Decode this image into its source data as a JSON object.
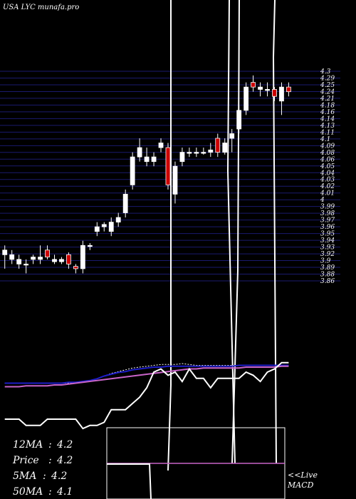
{
  "chart_data": {
    "type": "candlestick",
    "title": "USA LYC munafa.pro",
    "ylim": [
      3.85,
      4.3
    ],
    "y_tick_labels": [
      "4.3",
      "4.29",
      "4.25",
      "4.24",
      "4.21",
      "4.18",
      "4.16",
      "4.14",
      "4.13",
      "4.11",
      "4.1",
      "4.09",
      "4.08",
      "4.06",
      "4.05",
      "4.04",
      "4.03",
      "4.02",
      "4.01",
      "4",
      "3.99",
      "3.98",
      "3.97",
      "3.96",
      "3.95",
      "3.94",
      "3.93",
      "3.92",
      "3.9",
      "3.89",
      "3.88",
      "3.86"
    ],
    "candles": [
      {
        "o": 3.9,
        "h": 3.92,
        "l": 3.87,
        "c": 3.91,
        "dir": "up"
      },
      {
        "o": 3.89,
        "h": 3.91,
        "l": 3.88,
        "c": 3.9,
        "dir": "up"
      },
      {
        "o": 3.88,
        "h": 3.9,
        "l": 3.87,
        "c": 3.89,
        "dir": "up"
      },
      {
        "o": 3.88,
        "h": 3.89,
        "l": 3.86,
        "c": 3.88,
        "dir": "up"
      },
      {
        "o": 3.89,
        "h": 3.9,
        "l": 3.88,
        "c": 3.895,
        "dir": "up"
      },
      {
        "o": 3.89,
        "h": 3.92,
        "l": 3.88,
        "c": 3.895,
        "dir": "up"
      },
      {
        "o": 3.91,
        "h": 3.92,
        "l": 3.89,
        "c": 3.895,
        "dir": "down"
      },
      {
        "o": 3.885,
        "h": 3.9,
        "l": 3.88,
        "c": 3.89,
        "dir": "up"
      },
      {
        "o": 3.885,
        "h": 3.895,
        "l": 3.88,
        "c": 3.89,
        "dir": "up"
      },
      {
        "o": 3.9,
        "h": 3.905,
        "l": 3.87,
        "c": 3.88,
        "dir": "down"
      },
      {
        "o": 3.875,
        "h": 3.88,
        "l": 3.86,
        "c": 3.87,
        "dir": "down"
      },
      {
        "o": 3.87,
        "h": 3.93,
        "l": 3.86,
        "c": 3.92,
        "dir": "up"
      },
      {
        "o": 3.92,
        "h": 3.925,
        "l": 3.91,
        "c": 3.92,
        "dir": "up"
      },
      {
        "o": 3.95,
        "h": 3.97,
        "l": 3.94,
        "c": 3.96,
        "dir": "up"
      },
      {
        "o": 3.96,
        "h": 3.97,
        "l": 3.95,
        "c": 3.965,
        "dir": "up"
      },
      {
        "o": 3.95,
        "h": 3.98,
        "l": 3.94,
        "c": 3.97,
        "dir": "up"
      },
      {
        "o": 3.97,
        "h": 3.99,
        "l": 3.96,
        "c": 3.98,
        "dir": "up"
      },
      {
        "o": 3.99,
        "h": 4.04,
        "l": 3.98,
        "c": 4.03,
        "dir": "up"
      },
      {
        "o": 4.05,
        "h": 4.12,
        "l": 4.04,
        "c": 4.11,
        "dir": "up"
      },
      {
        "o": 4.11,
        "h": 4.15,
        "l": 4.1,
        "c": 4.13,
        "dir": "up"
      },
      {
        "o": 4.1,
        "h": 4.13,
        "l": 4.09,
        "c": 4.11,
        "dir": "up"
      },
      {
        "o": 4.1,
        "h": 4.12,
        "l": 4.09,
        "c": 4.11,
        "dir": "up"
      },
      {
        "o": 4.13,
        "h": 4.15,
        "l": 4.12,
        "c": 4.14,
        "dir": "up"
      },
      {
        "o": 4.13,
        "h": 4.14,
        "l": 4.04,
        "c": 4.05,
        "dir": "down"
      },
      {
        "o": 4.03,
        "h": 4.1,
        "l": 4.01,
        "c": 4.09,
        "dir": "up"
      },
      {
        "o": 4.1,
        "h": 4.13,
        "l": 4.09,
        "c": 4.12,
        "dir": "up"
      },
      {
        "o": 4.12,
        "h": 4.13,
        "l": 4.11,
        "c": 4.12,
        "dir": "up"
      },
      {
        "o": 4.12,
        "h": 4.13,
        "l": 4.11,
        "c": 4.12,
        "dir": "up"
      },
      {
        "o": 4.12,
        "h": 4.13,
        "l": 4.115,
        "c": 4.12,
        "dir": "up"
      },
      {
        "o": 4.12,
        "h": 4.14,
        "l": 4.11,
        "c": 4.125,
        "dir": "up"
      },
      {
        "o": 4.15,
        "h": 4.16,
        "l": 4.11,
        "c": 4.12,
        "dir": "down"
      },
      {
        "o": 4.12,
        "h": 4.15,
        "l": 4.115,
        "c": 4.14,
        "dir": "up"
      },
      {
        "o": 4.15,
        "h": 4.17,
        "l": 4.12,
        "c": 4.16,
        "dir": "up"
      },
      {
        "o": 4.17,
        "h": 4.22,
        "l": 4.16,
        "c": 4.21,
        "dir": "up"
      },
      {
        "o": 4.21,
        "h": 4.27,
        "l": 4.2,
        "c": 4.26,
        "dir": "up"
      },
      {
        "o": 4.27,
        "h": 4.285,
        "l": 4.25,
        "c": 4.26,
        "dir": "down"
      },
      {
        "o": 4.255,
        "h": 4.27,
        "l": 4.24,
        "c": 4.26,
        "dir": "up"
      },
      {
        "o": 4.255,
        "h": 4.27,
        "l": 4.24,
        "c": 4.255,
        "dir": "up"
      },
      {
        "o": 4.255,
        "h": 4.26,
        "l": 4.23,
        "c": 4.24,
        "dir": "down"
      },
      {
        "o": 4.23,
        "h": 4.27,
        "l": 4.2,
        "c": 4.26,
        "dir": "up"
      },
      {
        "o": 4.26,
        "h": 4.27,
        "l": 4.24,
        "c": 4.25,
        "dir": "down"
      }
    ],
    "moving_averages": [
      {
        "color": "#ffffff",
        "style": "dotted",
        "values": [
          3.9,
          3.9,
          3.9,
          3.9,
          3.9,
          3.9,
          3.9,
          3.9,
          3.9,
          3.9,
          3.905,
          3.91,
          3.915,
          3.925,
          3.94,
          3.955,
          3.965,
          3.975,
          3.985,
          3.99,
          3.995,
          4.0,
          4.005,
          4.005,
          4.005,
          4.01,
          4.005,
          4.0,
          4.0,
          4.0,
          4.0,
          4.0,
          4.0,
          4.0,
          4.0,
          4.0,
          4.0,
          4.0,
          4.0,
          4.0,
          4.0
        ]
      },
      {
        "color": "#1d1dc8",
        "style": "solid",
        "values": [
          3.9,
          3.9,
          3.9,
          3.9,
          3.9,
          3.9,
          3.9,
          3.9,
          3.9,
          3.905,
          3.905,
          3.91,
          3.915,
          3.925,
          3.94,
          3.95,
          3.96,
          3.965,
          3.975,
          3.98,
          3.985,
          3.99,
          3.99,
          3.995,
          3.995,
          3.995,
          3.995,
          3.995,
          3.995,
          3.995,
          3.995,
          3.995,
          3.995,
          4.0,
          4.0,
          4.0,
          4.0,
          4.0,
          4.0,
          4.0,
          4.0
        ]
      },
      {
        "color": "#c864c8",
        "style": "solid",
        "values": [
          3.88,
          3.88,
          3.88,
          3.885,
          3.885,
          3.885,
          3.885,
          3.89,
          3.89,
          3.895,
          3.9,
          3.905,
          3.91,
          3.915,
          3.92,
          3.925,
          3.93,
          3.935,
          3.94,
          3.945,
          3.95,
          3.955,
          3.96,
          3.965,
          3.97,
          3.975,
          3.98,
          3.98,
          3.985,
          3.985,
          3.985,
          3.985,
          3.985,
          3.985,
          3.99,
          3.99,
          3.99,
          3.99,
          3.99,
          3.995,
          3.995
        ]
      }
    ],
    "volume_line": [
      3.8,
      3.8,
      3.8,
      3.78,
      3.78,
      3.78,
      3.8,
      3.8,
      3.8,
      3.8,
      3.8,
      3.77,
      3.78,
      3.78,
      3.79,
      3.83,
      3.83,
      3.83,
      3.85,
      3.87,
      3.9,
      3.95,
      3.96,
      3.94,
      3.95,
      3.92,
      3.96,
      3.93,
      3.93,
      3.9,
      3.93,
      3.93,
      3.93,
      3.93,
      3.95,
      3.94,
      3.92,
      3.95,
      3.96,
      3.98,
      3.98
    ],
    "price_color_up": "#ffffff",
    "price_color_down": "#cc0000",
    "grid_color": "#1a1a6e",
    "stats": [
      {
        "label": "12MA",
        "value": "4.2"
      },
      {
        "label": "Price",
        "value": "4.2"
      },
      {
        "label": "5MA",
        "value": "4.2"
      },
      {
        "label": "50MA",
        "value": "4.1"
      }
    ],
    "macd_label": "<<Live MACD",
    "macd_label_line1": "<<Live",
    "macd_label_line2": "MACD",
    "macd_line_color": "#c864c8"
  }
}
